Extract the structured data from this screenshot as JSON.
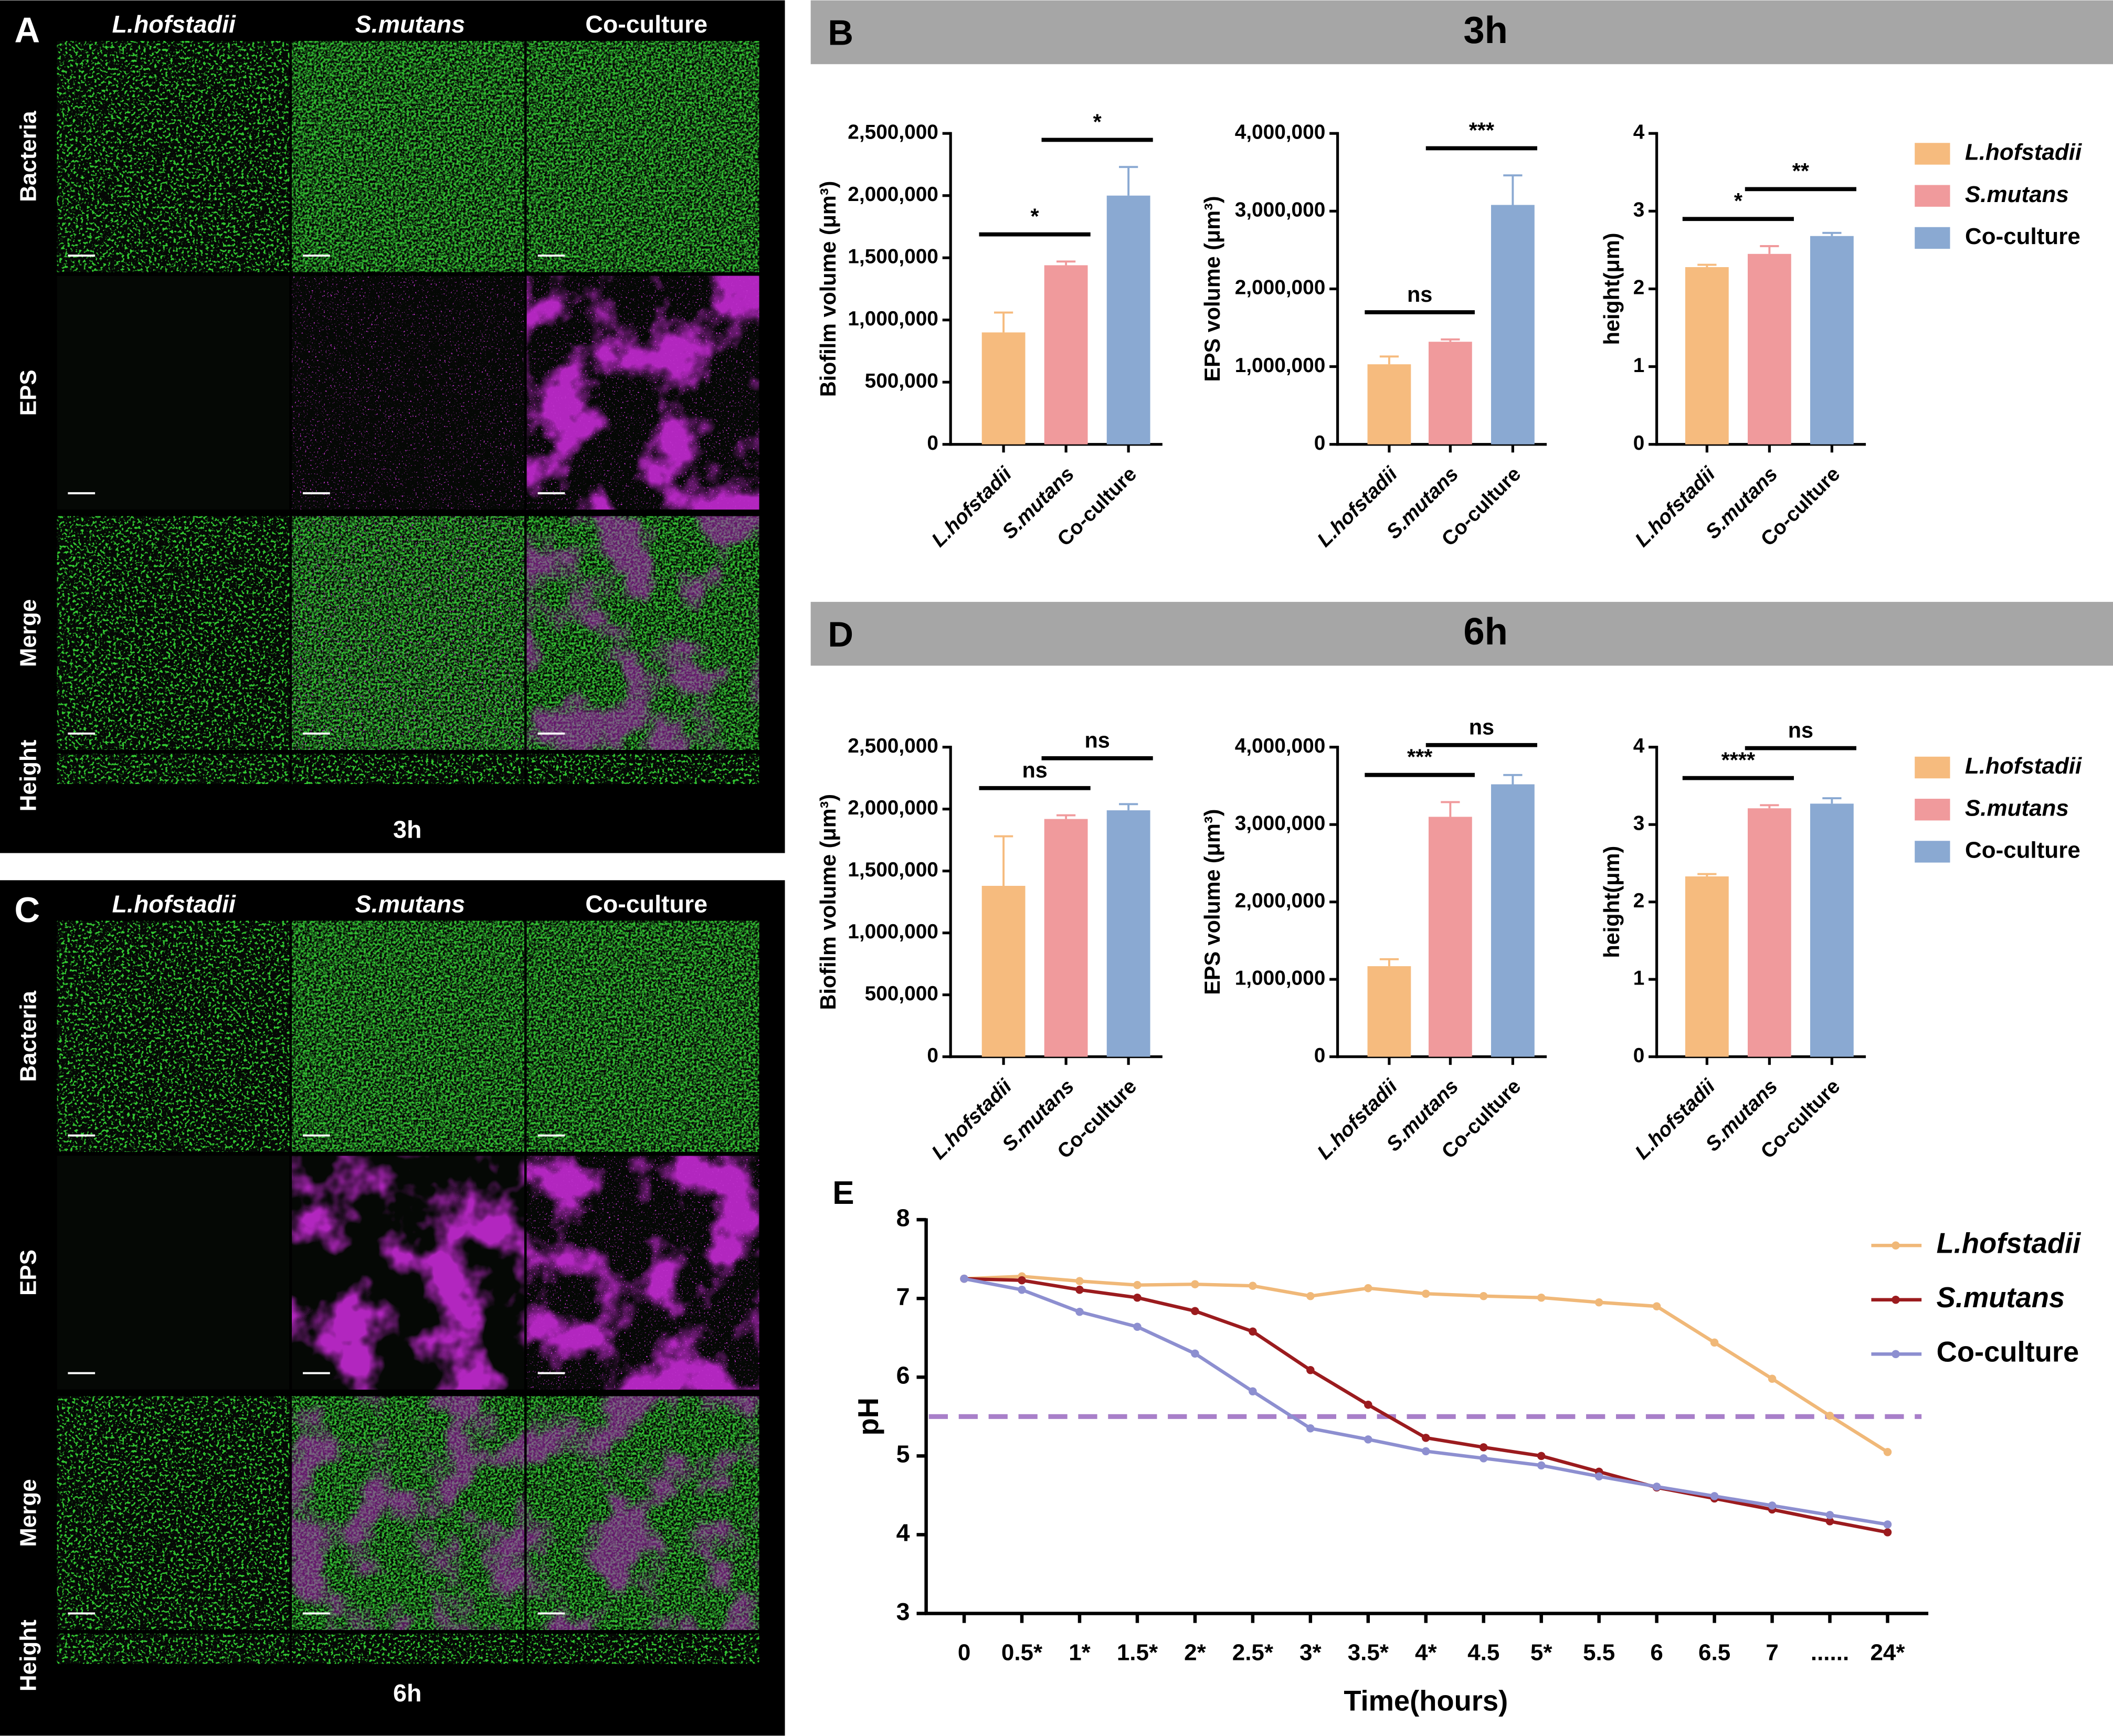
{
  "panels": [
    {
      "label": "A",
      "columns": [
        "L.hofstadii",
        "S.mutans",
        "Co-culture"
      ],
      "rows": [
        "Bacteria",
        "EPS",
        "Merge",
        "Height"
      ],
      "time": "3h"
    },
    {
      "label": "C",
      "columns": [
        "L.hofstadii",
        "S.mutans",
        "Co-culture"
      ],
      "rows": [
        "Bacteria",
        "EPS",
        "Merge",
        "Height"
      ],
      "time": "6h"
    }
  ],
  "sections": [
    {
      "label": "B",
      "title": "3h",
      "legend": [
        "L.hofstadii",
        "S.mutans",
        "Co-culture"
      ]
    },
    {
      "label": "D",
      "title": "6h",
      "legend": [
        "L.hofstadii",
        "S.mutans",
        "Co-culture"
      ]
    }
  ],
  "chart_data": [
    {
      "type": "bar",
      "ylabel": "Biofilm volume (μm³)",
      "categories": [
        "L.hofstadii",
        "S.mutans",
        "Co-culture"
      ],
      "values": [
        900000,
        1440000,
        2000000
      ],
      "errors": [
        160000,
        30000,
        230000
      ],
      "colors": [
        "#f6bb7e",
        "#f09a9c",
        "#8aa9d2"
      ],
      "ylim": [
        0,
        2500000
      ],
      "yticks": [
        0,
        {
          "value": 500000,
          "label": "500,000"
        },
        {
          "value": 1000000,
          "label": "1,000,000"
        },
        {
          "value": 1500000,
          "label": "1,500,000"
        },
        {
          "value": 2000000,
          "label": "2,000,000"
        },
        {
          "value": 2500000,
          "label": "2,500,000"
        }
      ],
      "annotations": [
        {
          "text": "*",
          "between": [
            0,
            1
          ]
        },
        {
          "text": "*",
          "between": [
            1,
            2
          ]
        }
      ]
    },
    {
      "type": "bar",
      "ylabel": "EPS volume (μm³)",
      "categories": [
        "L.hofstadii",
        "S.mutans",
        "Co-culture"
      ],
      "values": [
        1030000,
        1320000,
        3080000
      ],
      "errors": [
        100000,
        30000,
        380000
      ],
      "colors": [
        "#f6bb7e",
        "#f09a9c",
        "#8aa9d2"
      ],
      "ylim": [
        0,
        4000000
      ],
      "yticks": [
        0,
        {
          "value": 1000000,
          "label": "1,000,000"
        },
        {
          "value": 2000000,
          "label": "2,000,000"
        },
        {
          "value": 3000000,
          "label": "3,000,000"
        },
        {
          "value": 4000000,
          "label": "4,000,000"
        }
      ],
      "annotations": [
        {
          "text": "ns",
          "between": [
            0,
            1
          ]
        },
        {
          "text": "***",
          "between": [
            1,
            2
          ]
        }
      ]
    },
    {
      "type": "bar",
      "ylabel": "height(μm)",
      "categories": [
        "L.hofstadii",
        "S.mutans",
        "Co-culture"
      ],
      "values": [
        2.28,
        2.45,
        2.68
      ],
      "errors": [
        0.03,
        0.1,
        0.04
      ],
      "colors": [
        "#f6bb7e",
        "#f09a9c",
        "#8aa9d2"
      ],
      "ylim": [
        0,
        4
      ],
      "yticks": [
        0,
        1,
        2,
        3,
        4
      ],
      "annotations": [
        {
          "text": "*",
          "between": [
            0,
            1
          ]
        },
        {
          "text": "**",
          "between": [
            1,
            2
          ]
        }
      ]
    },
    {
      "type": "bar",
      "ylabel": "Biofilm volume (μm³)",
      "categories": [
        "L.hofstadii",
        "S.mutans",
        "Co-culture"
      ],
      "values": [
        1380000,
        1920000,
        1990000
      ],
      "errors": [
        400000,
        30000,
        50000
      ],
      "colors": [
        "#f6bb7e",
        "#f09a9c",
        "#8aa9d2"
      ],
      "ylim": [
        0,
        2500000
      ],
      "yticks": [
        0,
        {
          "value": 500000,
          "label": "500,000"
        },
        {
          "value": 1000000,
          "label": "1,000,000"
        },
        {
          "value": 1500000,
          "label": "1,500,000"
        },
        {
          "value": 2000000,
          "label": "2,000,000"
        },
        {
          "value": 2500000,
          "label": "2,500,000"
        }
      ],
      "annotations": [
        {
          "text": "ns",
          "between": [
            0,
            1
          ]
        },
        {
          "text": "ns",
          "between": [
            1,
            2
          ]
        }
      ]
    },
    {
      "type": "bar",
      "ylabel": "EPS volume (μm³)",
      "categories": [
        "L.hofstadii",
        "S.mutans",
        "Co-culture"
      ],
      "values": [
        1170000,
        3100000,
        3520000
      ],
      "errors": [
        90000,
        190000,
        120000
      ],
      "colors": [
        "#f6bb7e",
        "#f09a9c",
        "#8aa9d2"
      ],
      "ylim": [
        0,
        4000000
      ],
      "yticks": [
        0,
        {
          "value": 1000000,
          "label": "1,000,000"
        },
        {
          "value": 2000000,
          "label": "2,000,000"
        },
        {
          "value": 3000000,
          "label": "3,000,000"
        },
        {
          "value": 4000000,
          "label": "4,000,000"
        }
      ],
      "annotations": [
        {
          "text": "***",
          "between": [
            0,
            1
          ]
        },
        {
          "text": "ns",
          "between": [
            1,
            2
          ]
        }
      ]
    },
    {
      "type": "bar",
      "ylabel": "height(μm)",
      "categories": [
        "L.hofstadii",
        "S.mutans",
        "Co-culture"
      ],
      "values": [
        2.33,
        3.21,
        3.27
      ],
      "errors": [
        0.03,
        0.04,
        0.07
      ],
      "colors": [
        "#f6bb7e",
        "#f09a9c",
        "#8aa9d2"
      ],
      "ylim": [
        0,
        4
      ],
      "yticks": [
        0,
        1,
        2,
        3,
        4
      ],
      "annotations": [
        {
          "text": "****",
          "between": [
            0,
            1
          ]
        },
        {
          "text": "ns",
          "between": [
            1,
            2
          ]
        }
      ]
    },
    {
      "type": "line",
      "label": "E",
      "xlabel": "Time(hours)",
      "ylabel": "pH",
      "categories": [
        "0",
        "0.5*",
        "1*",
        "1.5*",
        "2*",
        "2.5*",
        "3*",
        "3.5*",
        "4*",
        "4.5",
        "5*",
        "5.5",
        "6",
        "6.5",
        "7",
        "......",
        "24*"
      ],
      "series": [
        {
          "name": "L.hofstadii",
          "color": "#f0b878",
          "values": [
            7.25,
            7.28,
            7.22,
            7.17,
            7.18,
            7.16,
            7.03,
            7.13,
            7.06,
            7.03,
            7.01,
            6.95,
            6.9,
            6.44,
            5.98,
            5.51,
            5.05
          ]
        },
        {
          "name": "S.mutans",
          "color": "#9b1b1e",
          "values": [
            7.25,
            7.23,
            7.11,
            7.01,
            6.84,
            6.58,
            6.09,
            5.65,
            5.23,
            5.11,
            5.0,
            4.8,
            4.6,
            4.46,
            4.32,
            4.17,
            4.03
          ]
        },
        {
          "name": "Co-culture",
          "color": "#8d8fd0",
          "values": [
            7.25,
            7.11,
            6.83,
            6.64,
            6.3,
            5.82,
            5.35,
            5.21,
            5.06,
            4.97,
            4.88,
            4.74,
            4.61,
            4.49,
            4.37,
            4.25,
            4.13
          ]
        }
      ],
      "ylim": [
        3,
        8
      ],
      "yticks": [
        3,
        4,
        5,
        6,
        7,
        8
      ],
      "reference": {
        "value": 5.5,
        "color": "#a87fc9"
      }
    }
  ]
}
